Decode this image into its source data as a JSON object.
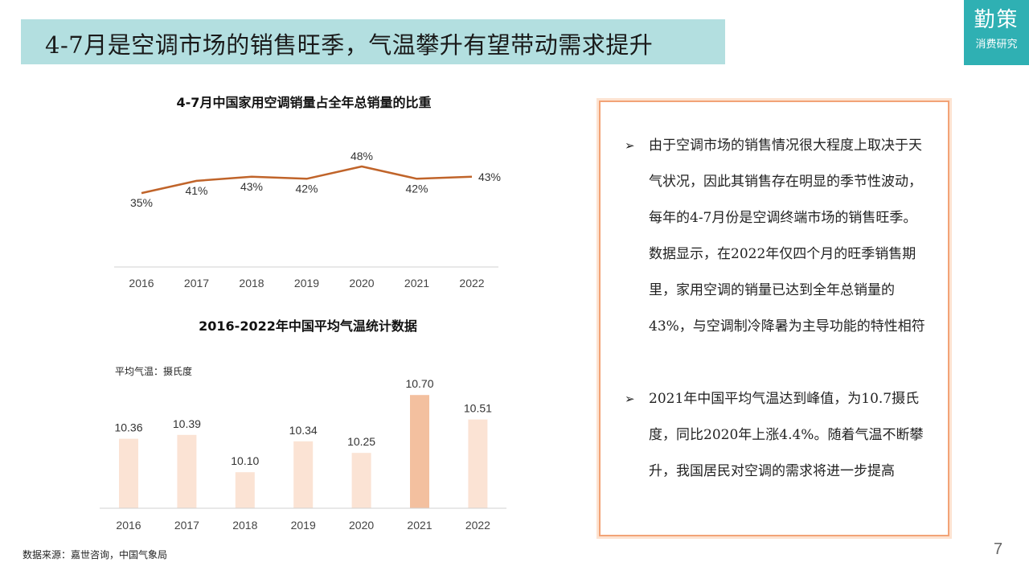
{
  "header": {
    "title": "4-7月是空调市场的销售旺季，气温攀升有望带动需求提升"
  },
  "logo": {
    "main": "勤策",
    "sub": "消费研究"
  },
  "chart_data": [
    {
      "type": "line",
      "title": "4-7月中国家用空调销量占全年总销量的比重",
      "categories": [
        "2016",
        "2017",
        "2018",
        "2019",
        "2020",
        "2021",
        "2022"
      ],
      "values": [
        35,
        41,
        43,
        42,
        48,
        42,
        43
      ],
      "labels": [
        "35%",
        "41%",
        "43%",
        "42%",
        "48%",
        "42%",
        "43%"
      ],
      "unit": "%",
      "color": "#c0642a",
      "grid": false
    },
    {
      "type": "bar",
      "title": "2016-2022年中国平均气温统计数据",
      "unit_note": "平均气温：摄氏度",
      "categories": [
        "2016",
        "2017",
        "2018",
        "2019",
        "2020",
        "2021",
        "2022"
      ],
      "values": [
        10.36,
        10.39,
        10.1,
        10.34,
        10.25,
        10.7,
        10.51
      ],
      "labels": [
        "10.36",
        "10.39",
        "10.10",
        "10.34",
        "10.25",
        "10.70",
        "10.51"
      ],
      "colors": {
        "default": "#fbe3d4",
        "highlight": "#f3c09f"
      },
      "highlight_category": "2021",
      "grid": false
    }
  ],
  "panel": {
    "bullets": [
      {
        "arrow": "➢",
        "text": "由于空调市场的销售情况很大程度上取决于天气状况，因此其销售存在明显的季节性波动，每年的4-7月份是空调终端市场的销售旺季。数据显示，在2022年仅四个月的旺季销售期里，家用空调的销量已达到全年总销量的43%，与空调制冷降暑为主导功能的特性相符"
      },
      {
        "arrow": "➢",
        "text": "2021年中国平均气温达到峰值，为10.7摄氏度，同比2020年上涨4.4%。随着气温不断攀升，我国居民对空调的需求将进一步提高"
      }
    ]
  },
  "footer": {
    "source": "数据来源：嘉世咨询，中国气象局",
    "page": "7"
  }
}
